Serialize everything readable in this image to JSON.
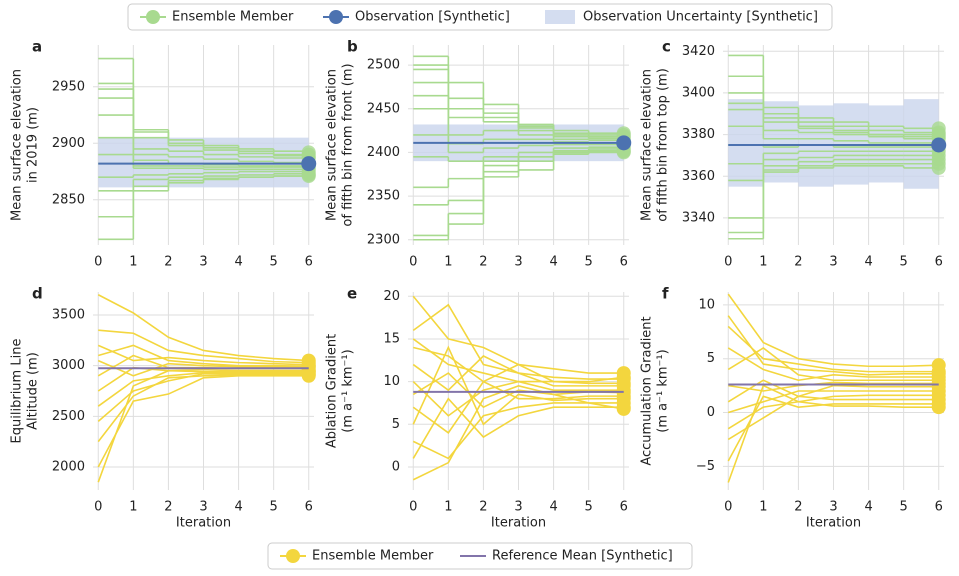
{
  "legends": [
    {
      "entries": [
        {
          "name": "Ensemble Member",
          "color": "#a8da8f"
        },
        {
          "name": "Observation [Synthetic]",
          "color": "#4c72b0"
        },
        {
          "name": "Observation Uncertainty [Synthetic]",
          "color": "#c9d4ec"
        }
      ]
    },
    {
      "entries": [
        {
          "name": "Ensemble Member",
          "color": "#f3d63e"
        },
        {
          "name": "Reference Mean [Synthetic]",
          "color": "#8274aa"
        }
      ]
    }
  ],
  "chart_data": [
    {
      "type": "step",
      "panel": "a",
      "ylabel": [
        "Mean surface elevation",
        "in 2019 (m)"
      ],
      "x": [
        0,
        1,
        2,
        3,
        4,
        5,
        6
      ],
      "xlim": [
        -0.15,
        6.15
      ],
      "xticks": [
        0,
        1,
        2,
        3,
        4,
        5,
        6
      ],
      "ylim": [
        2810,
        2987
      ],
      "yticks": [
        2850,
        2900,
        2950
      ],
      "grid": true,
      "observation": 2882,
      "uncertainty_lower": [
        2861,
        2861,
        2861,
        2861,
        2861,
        2861
      ],
      "uncertainty_upper": [
        2905,
        2905,
        2905,
        2905,
        2905,
        2905
      ],
      "members": [
        [
          2975,
          2912,
          2903,
          2898,
          2895,
          2893,
          2892
        ],
        [
          2953,
          2905,
          2900,
          2896,
          2893,
          2890,
          2890
        ],
        [
          2940,
          2895,
          2893,
          2890,
          2888,
          2887,
          2887
        ],
        [
          2925,
          2890,
          2888,
          2886,
          2884,
          2883,
          2883
        ],
        [
          2905,
          2885,
          2882,
          2881,
          2880,
          2880,
          2880
        ],
        [
          2890,
          2878,
          2878,
          2877,
          2877,
          2877,
          2877
        ],
        [
          2870,
          2872,
          2873,
          2874,
          2875,
          2875,
          2875
        ],
        [
          2858,
          2868,
          2870,
          2871,
          2872,
          2873,
          2873
        ],
        [
          2835,
          2862,
          2867,
          2869,
          2870,
          2871,
          2872
        ],
        [
          2815,
          2858,
          2865,
          2868,
          2870,
          2871,
          2871
        ],
        [
          2948,
          2910,
          2898,
          2894,
          2891,
          2889,
          2888
        ],
        [
          2882,
          2880,
          2880,
          2879,
          2879,
          2879,
          2879
        ]
      ]
    },
    {
      "type": "step",
      "panel": "b",
      "ylabel": [
        "Mean surface elevation",
        "of fifth bin from front (m)"
      ],
      "x": [
        0,
        1,
        2,
        3,
        4,
        5,
        6
      ],
      "xlim": [
        -0.15,
        6.15
      ],
      "xticks": [
        0,
        1,
        2,
        3,
        4,
        5,
        6
      ],
      "ylim": [
        2294,
        2523
      ],
      "yticks": [
        2300,
        2350,
        2400,
        2450,
        2500
      ],
      "grid": true,
      "observation": 2411,
      "uncertainty_lower": [
        2390,
        2390,
        2390,
        2390,
        2390,
        2390
      ],
      "uncertainty_upper": [
        2432,
        2432,
        2432,
        2432,
        2432,
        2432
      ],
      "members": [
        [
          2510,
          2480,
          2455,
          2432,
          2425,
          2422,
          2422
        ],
        [
          2495,
          2450,
          2445,
          2428,
          2420,
          2418,
          2418
        ],
        [
          2480,
          2440,
          2435,
          2425,
          2418,
          2416,
          2416
        ],
        [
          2465,
          2420,
          2425,
          2420,
          2415,
          2414,
          2414
        ],
        [
          2450,
          2410,
          2415,
          2415,
          2412,
          2411,
          2411
        ],
        [
          2420,
          2400,
          2405,
          2408,
          2409,
          2409,
          2409
        ],
        [
          2395,
          2390,
          2395,
          2400,
          2405,
          2406,
          2406
        ],
        [
          2360,
          2370,
          2385,
          2395,
          2402,
          2404,
          2404
        ],
        [
          2340,
          2345,
          2378,
          2390,
          2400,
          2402,
          2402
        ],
        [
          2305,
          2330,
          2372,
          2380,
          2398,
          2400,
          2400
        ],
        [
          2300,
          2318,
          2390,
          2395,
          2400,
          2401,
          2401
        ],
        [
          2500,
          2462,
          2440,
          2430,
          2422,
          2420,
          2420
        ]
      ]
    },
    {
      "type": "step",
      "panel": "c",
      "ylabel": [
        "Mean surface elevation",
        "of fifth bin from top (m)"
      ],
      "x": [
        0,
        1,
        2,
        3,
        4,
        5,
        6
      ],
      "xlim": [
        -0.15,
        6.15
      ],
      "xticks": [
        0,
        1,
        2,
        3,
        4,
        5,
        6
      ],
      "ylim": [
        3327,
        3423
      ],
      "yticks": [
        3340,
        3360,
        3380,
        3400,
        3420
      ],
      "grid": true,
      "observation": 3375,
      "uncertainty_lower": [
        3355,
        3357,
        3355,
        3356,
        3357,
        3354
      ],
      "uncertainty_upper": [
        3397,
        3396,
        3394,
        3395,
        3394,
        3397
      ],
      "members": [
        [
          3418,
          3393,
          3388,
          3386,
          3384,
          3383,
          3383
        ],
        [
          3408,
          3390,
          3386,
          3384,
          3382,
          3381,
          3381
        ],
        [
          3400,
          3386,
          3384,
          3382,
          3380,
          3380,
          3380
        ],
        [
          3392,
          3382,
          3381,
          3380,
          3379,
          3378,
          3378
        ],
        [
          3384,
          3378,
          3378,
          3377,
          3376,
          3376,
          3376
        ],
        [
          3375,
          3374,
          3375,
          3374,
          3374,
          3374,
          3374
        ],
        [
          3366,
          3371,
          3372,
          3372,
          3372,
          3372,
          3372
        ],
        [
          3358,
          3368,
          3369,
          3370,
          3370,
          3370,
          3370
        ],
        [
          3340,
          3365,
          3367,
          3368,
          3368,
          3368,
          3368
        ],
        [
          3333,
          3362,
          3365,
          3366,
          3366,
          3366,
          3366
        ],
        [
          3330,
          3363,
          3364,
          3365,
          3365,
          3364,
          3364
        ],
        [
          3395,
          3388,
          3383,
          3381,
          3380,
          3379,
          3379
        ]
      ]
    },
    {
      "type": "line",
      "panel": "d",
      "ylabel": [
        "Equilibrium Line",
        "Altitude (m)"
      ],
      "xlabel": "Iteration",
      "x": [
        0,
        1,
        2,
        3,
        4,
        5,
        6
      ],
      "xlim": [
        -0.15,
        6.15
      ],
      "xticks": [
        0,
        1,
        2,
        3,
        4,
        5,
        6
      ],
      "ylim": [
        1773,
        3727
      ],
      "yticks": [
        2000,
        2500,
        3000,
        3500
      ],
      "grid": true,
      "reference_mean": 2975,
      "members": [
        [
          3700,
          3520,
          3280,
          3150,
          3100,
          3070,
          3050
        ],
        [
          3350,
          3320,
          3150,
          3100,
          3070,
          3040,
          3030
        ],
        [
          3200,
          3050,
          3080,
          3050,
          3030,
          3020,
          3010
        ],
        [
          3050,
          2900,
          3020,
          3000,
          2990,
          2990,
          2990
        ],
        [
          2900,
          3100,
          2980,
          2980,
          2970,
          2970,
          2970
        ],
        [
          2750,
          2980,
          2950,
          2960,
          2950,
          2950,
          2950
        ],
        [
          2600,
          2850,
          2900,
          2930,
          2930,
          2935,
          2935
        ],
        [
          2450,
          2750,
          2850,
          2920,
          2920,
          2925,
          2920
        ],
        [
          2250,
          2700,
          2880,
          2900,
          2910,
          2910,
          2910
        ],
        [
          2000,
          2650,
          2720,
          2880,
          2900,
          2900,
          2900
        ],
        [
          1850,
          2800,
          2950,
          2940,
          2940,
          2945,
          2945
        ],
        [
          3100,
          3200,
          3050,
          3020,
          3000,
          3000,
          2995
        ]
      ]
    },
    {
      "type": "line",
      "panel": "e",
      "ylabel": [
        "Ablation Gradient",
        "(m a⁻¹ km⁻¹)"
      ],
      "xlabel": "Iteration",
      "x": [
        0,
        1,
        2,
        3,
        4,
        5,
        6
      ],
      "xlim": [
        -0.15,
        6.15
      ],
      "xticks": [
        0,
        1,
        2,
        3,
        4,
        5,
        6
      ],
      "ylim": [
        -2.7,
        20.5
      ],
      "yticks": [
        0,
        5,
        10,
        15,
        20
      ],
      "grid": true,
      "reference_mean": 8.8,
      "members": [
        [
          20,
          15,
          14,
          12,
          11.5,
          11,
          11
        ],
        [
          16,
          19,
          12,
          11,
          10.5,
          10.3,
          10.3
        ],
        [
          14,
          13,
          10,
          12,
          10,
          9.8,
          9.8
        ],
        [
          12,
          9,
          13,
          11,
          9.5,
          9.5,
          9.5
        ],
        [
          10,
          6,
          9,
          10,
          9,
          9,
          9
        ],
        [
          8.5,
          11,
          7,
          9,
          8.5,
          8.8,
          8.7
        ],
        [
          7,
          4,
          10,
          8,
          8,
          8.3,
          8.3
        ],
        [
          5,
          14,
          5,
          8.5,
          7.8,
          8,
          8
        ],
        [
          3,
          1,
          6,
          7,
          7.5,
          7.5,
          7.5
        ],
        [
          1,
          8,
          3.5,
          6,
          7,
          7,
          7
        ],
        [
          -1.5,
          0.5,
          8,
          9.5,
          8.5,
          7.5,
          6.8
        ],
        [
          15,
          12,
          11,
          10,
          10,
          10,
          10.5
        ]
      ]
    },
    {
      "type": "line",
      "panel": "f",
      "ylabel": [
        "Accumulation Gradient",
        "(m a⁻¹ km⁻¹)"
      ],
      "xlabel": "Iteration",
      "x": [
        0,
        1,
        2,
        3,
        4,
        5,
        6
      ],
      "xlim": [
        -0.15,
        6.15
      ],
      "xticks": [
        0,
        1,
        2,
        3,
        4,
        5,
        6
      ],
      "ylim": [
        -7.2,
        11.2
      ],
      "yticks": [
        {
          "value": -5,
          "label": "−5"
        },
        0,
        5,
        10
      ],
      "grid": true,
      "reference_mean": 2.6,
      "members": [
        [
          11,
          6.5,
          5,
          4.5,
          4.3,
          4.3,
          4.4
        ],
        [
          8,
          5,
          4.5,
          4,
          3.8,
          3.8,
          3.8
        ],
        [
          6,
          4,
          3,
          3.5,
          3.3,
          3.3,
          3.3
        ],
        [
          4,
          6,
          3.5,
          3,
          3,
          3,
          3
        ],
        [
          2.5,
          2,
          2.5,
          2.8,
          2.7,
          2.7,
          2.7
        ],
        [
          1,
          3,
          1.5,
          2.5,
          2.4,
          2.4,
          2.4
        ],
        [
          0,
          1,
          2,
          2,
          2,
          2,
          2
        ],
        [
          -1.5,
          0.5,
          1,
          1.5,
          1.6,
          1.6,
          1.6
        ],
        [
          -2.5,
          -0.5,
          1.5,
          1.2,
          1.2,
          1.2,
          1.2
        ],
        [
          -4.5,
          1.5,
          0.5,
          0.8,
          0.8,
          0.8,
          0.8
        ],
        [
          -6.5,
          2.5,
          1,
          0.6,
          0.6,
          0.5,
          0.5
        ],
        [
          9,
          4.5,
          4,
          3.8,
          3.5,
          3.6,
          3.6
        ]
      ]
    }
  ]
}
